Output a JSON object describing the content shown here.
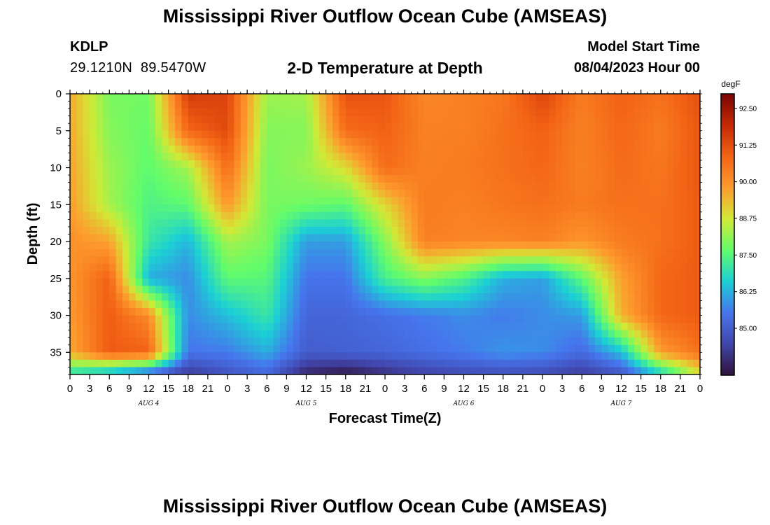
{
  "header": {
    "title": "Mississippi River Outflow Ocean Cube (AMSEAS)",
    "footer_title": "Mississippi River Outflow Ocean Cube (AMSEAS)",
    "station": "KDLP",
    "coordinates": "29.1210N  89.5470W",
    "subtitle": "2-D Temperature at Depth",
    "model_start_label": "Model Start Time",
    "model_start_value": "08/04/2023 Hour 00"
  },
  "chart_data": {
    "type": "heatmap",
    "title": "2-D Temperature at Depth",
    "xlabel": "Forecast Time(Z)",
    "ylabel": "Depth (ft)",
    "x_unit": "forecast hour from 08/04/2023 00Z",
    "x_range": [
      0,
      96
    ],
    "x_tick_labels": [
      "0",
      "3",
      "6",
      "9",
      "12",
      "15",
      "18",
      "21",
      "0",
      "3",
      "6",
      "9",
      "12",
      "15",
      "18",
      "21",
      "0",
      "3",
      "6",
      "9",
      "12",
      "15",
      "18",
      "21",
      "0",
      "3",
      "6",
      "9",
      "12",
      "15",
      "18",
      "21",
      "0"
    ],
    "day_labels": [
      "AUG 4",
      "AUG 5",
      "AUG 6",
      "AUG 7"
    ],
    "y_range": [
      0,
      38
    ],
    "y_ticks": [
      0,
      5,
      10,
      15,
      20,
      25,
      30,
      35
    ],
    "colorbar": {
      "unit": "degF",
      "range": [
        83.4,
        93.0
      ],
      "ticks": [
        "92.50",
        "91.25",
        "90.00",
        "88.75",
        "87.50",
        "86.25",
        "85.00"
      ],
      "colors": [
        "#30123b",
        "#4145ab",
        "#4675ed",
        "#1bd0d5",
        "#62fc6b",
        "#d2e935",
        "#fe9b2d",
        "#f36315",
        "#c52803",
        "#7a0403"
      ]
    },
    "depths_ft": [
      0,
      5,
      10,
      15,
      20,
      25,
      30,
      35,
      38
    ],
    "hours": [
      0,
      6,
      12,
      18,
      24,
      30,
      36,
      42,
      48,
      54,
      60,
      66,
      72,
      78,
      84,
      90,
      96
    ],
    "values_degF": [
      [
        89.6,
        87.9,
        87.8,
        91.6,
        91.4,
        88.2,
        88.3,
        91.2,
        91.1,
        90.2,
        90.3,
        90.5,
        91.4,
        90.4,
        90.9,
        90.6,
        91.2
      ],
      [
        89.6,
        88.0,
        87.7,
        90.8,
        91.3,
        88.0,
        88.0,
        90.7,
        90.9,
        90.3,
        90.3,
        90.6,
        90.9,
        90.3,
        90.8,
        90.4,
        91.1
      ],
      [
        89.7,
        88.2,
        87.6,
        88.3,
        90.7,
        87.9,
        88.2,
        88.9,
        90.7,
        90.3,
        90.4,
        90.6,
        90.8,
        90.3,
        90.7,
        90.5,
        91.1
      ],
      [
        89.8,
        88.3,
        87.4,
        87.6,
        89.9,
        87.9,
        87.8,
        87.6,
        89.0,
        90.4,
        90.3,
        90.5,
        90.6,
        90.4,
        90.6,
        90.6,
        91.0
      ],
      [
        90.0,
        89.7,
        87.1,
        86.3,
        88.3,
        87.9,
        86.0,
        86.0,
        88.0,
        90.3,
        90.2,
        90.2,
        90.3,
        89.9,
        90.4,
        90.6,
        91.0
      ],
      [
        89.9,
        90.9,
        86.2,
        85.8,
        87.6,
        87.5,
        85.5,
        85.5,
        87.3,
        88.0,
        87.4,
        86.2,
        86.0,
        87.6,
        89.7,
        90.8,
        91.0
      ],
      [
        89.8,
        91.0,
        90.1,
        85.8,
        86.4,
        87.1,
        85.2,
        85.2,
        85.4,
        85.6,
        85.8,
        85.6,
        85.8,
        86.0,
        89.5,
        90.8,
        91.0
      ],
      [
        89.6,
        91.0,
        90.9,
        85.5,
        85.6,
        86.2,
        85.0,
        85.1,
        85.2,
        85.4,
        85.6,
        85.9,
        85.8,
        85.3,
        86.4,
        89.8,
        90.6
      ],
      [
        86.8,
        86.0,
        85.0,
        84.2,
        84.8,
        85.2,
        83.8,
        83.5,
        84.0,
        84.4,
        84.6,
        84.7,
        84.6,
        84.3,
        84.8,
        86.5,
        88.8
      ]
    ]
  }
}
